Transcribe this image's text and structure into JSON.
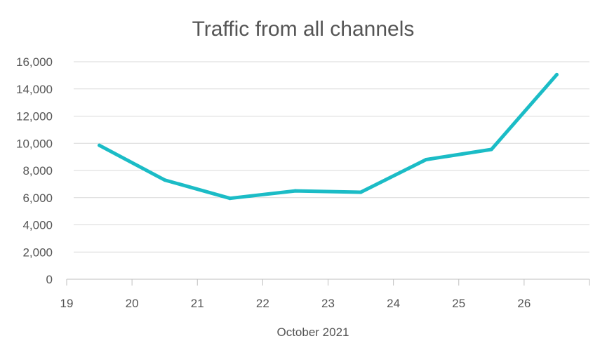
{
  "chart_data": {
    "type": "line",
    "title": "Traffic from all channels",
    "xlabel": "October 2021",
    "ylabel": "",
    "xlim": [
      19,
      27
    ],
    "ylim": [
      0,
      16000
    ],
    "x_ticks": [
      19,
      20,
      21,
      22,
      23,
      24,
      25,
      26
    ],
    "x_tick_labels": [
      "19",
      "20",
      "21",
      "22",
      "23",
      "24",
      "25",
      "26"
    ],
    "y_ticks": [
      0,
      2000,
      4000,
      6000,
      8000,
      10000,
      12000,
      14000,
      16000
    ],
    "y_tick_labels": [
      "0",
      "2,000",
      "4,000",
      "6,000",
      "8,000",
      "10,000",
      "12,000",
      "14,000",
      "16,000"
    ],
    "grid": true,
    "legend": "none",
    "color": "#1bbcc6",
    "series": [
      {
        "x": [
          19.5,
          20.5,
          21.5,
          22.5,
          23.5,
          24.5,
          25.5,
          26.5
        ],
        "values": [
          9850,
          7300,
          5950,
          6500,
          6400,
          8800,
          9550,
          15050
        ]
      }
    ]
  }
}
